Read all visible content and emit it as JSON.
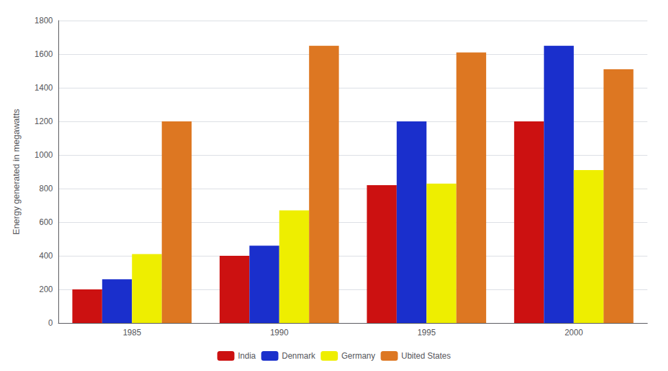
{
  "chart_data": {
    "type": "bar",
    "categories": [
      "1985",
      "1990",
      "1995",
      "2000"
    ],
    "series": [
      {
        "name": "India",
        "color": "#cc1111",
        "values": [
          200,
          400,
          820,
          1200
        ]
      },
      {
        "name": "Denmark",
        "color": "#1a2fcc",
        "values": [
          260,
          460,
          1200,
          1650
        ]
      },
      {
        "name": "Germany",
        "color": "#eeee00",
        "values": [
          410,
          670,
          830,
          910
        ]
      },
      {
        "name": "Ubited States",
        "color": "#dd7722",
        "values": [
          1200,
          1650,
          1610,
          1510
        ]
      }
    ],
    "ylabel": "Energy generated in megawatts",
    "ylim": [
      0,
      1800
    ],
    "yticks": [
      0,
      200,
      400,
      600,
      800,
      1000,
      1200,
      1400,
      1600,
      1800
    ],
    "grid": true,
    "legend": "bottom"
  }
}
